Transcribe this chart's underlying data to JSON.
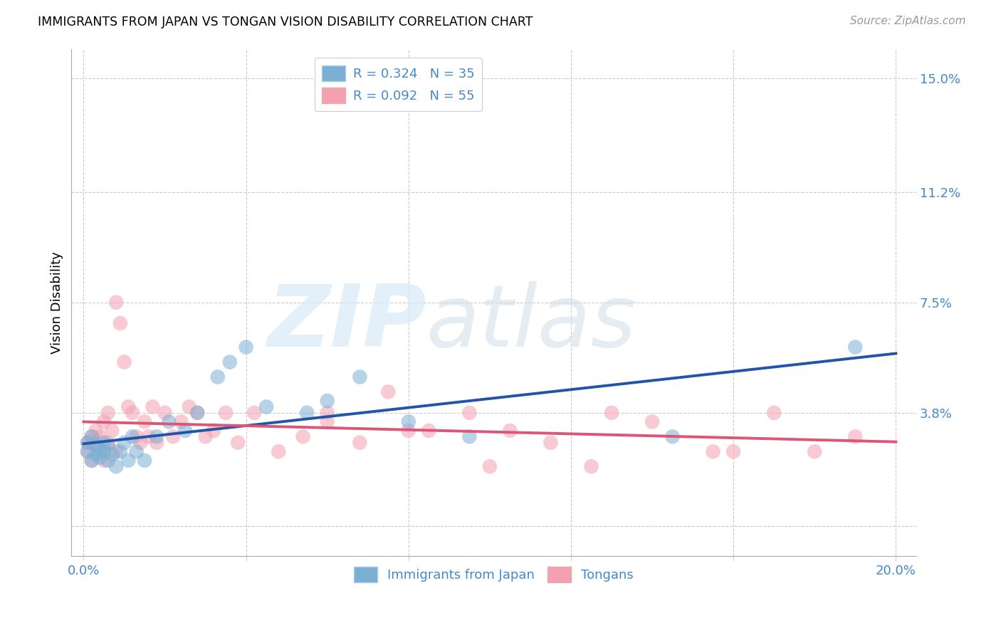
{
  "title": "IMMIGRANTS FROM JAPAN VS TONGAN VISION DISABILITY CORRELATION CHART",
  "source": "Source: ZipAtlas.com",
  "ylabel": "Vision Disability",
  "xlim_min": -0.003,
  "xlim_max": 0.205,
  "ylim_min": -0.01,
  "ylim_max": 0.16,
  "ytick_vals": [
    0.0,
    0.038,
    0.075,
    0.112,
    0.15
  ],
  "ytick_labels": [
    "",
    "3.8%",
    "7.5%",
    "11.2%",
    "15.0%"
  ],
  "xtick_vals": [
    0.0,
    0.04,
    0.08,
    0.12,
    0.16,
    0.2
  ],
  "xtick_labels": [
    "0.0%",
    "",
    "",
    "",
    "",
    "20.0%"
  ],
  "legend_r1": "R = 0.324   N = 35",
  "legend_r2": "R = 0.092   N = 55",
  "color_blue": "#7BAFD4",
  "color_pink": "#F4A0B0",
  "color_blue_line": "#2255AA",
  "color_pink_line": "#DD5577",
  "color_blue_text": "#4488CC",
  "japan_x": [
    0.001,
    0.001,
    0.002,
    0.002,
    0.003,
    0.003,
    0.004,
    0.004,
    0.005,
    0.005,
    0.006,
    0.006,
    0.007,
    0.008,
    0.009,
    0.01,
    0.011,
    0.012,
    0.013,
    0.015,
    0.018,
    0.021,
    0.025,
    0.028,
    0.033,
    0.036,
    0.04,
    0.045,
    0.055,
    0.06,
    0.068,
    0.08,
    0.095,
    0.145,
    0.19
  ],
  "japan_y": [
    0.025,
    0.028,
    0.022,
    0.03,
    0.027,
    0.024,
    0.026,
    0.023,
    0.028,
    0.025,
    0.022,
    0.027,
    0.024,
    0.02,
    0.025,
    0.028,
    0.022,
    0.03,
    0.025,
    0.022,
    0.03,
    0.035,
    0.032,
    0.038,
    0.05,
    0.055,
    0.06,
    0.04,
    0.038,
    0.042,
    0.05,
    0.035,
    0.03,
    0.03,
    0.06
  ],
  "tongan_x": [
    0.001,
    0.001,
    0.002,
    0.002,
    0.003,
    0.003,
    0.004,
    0.004,
    0.005,
    0.005,
    0.006,
    0.006,
    0.007,
    0.008,
    0.008,
    0.009,
    0.01,
    0.011,
    0.012,
    0.013,
    0.014,
    0.015,
    0.016,
    0.017,
    0.018,
    0.02,
    0.022,
    0.024,
    0.026,
    0.028,
    0.03,
    0.032,
    0.035,
    0.038,
    0.042,
    0.048,
    0.054,
    0.06,
    0.068,
    0.075,
    0.085,
    0.095,
    0.105,
    0.115,
    0.125,
    0.14,
    0.155,
    0.17,
    0.18,
    0.19,
    0.06,
    0.08,
    0.1,
    0.13,
    0.16
  ],
  "tongan_y": [
    0.028,
    0.025,
    0.03,
    0.022,
    0.028,
    0.032,
    0.025,
    0.03,
    0.035,
    0.022,
    0.038,
    0.028,
    0.032,
    0.025,
    0.075,
    0.068,
    0.055,
    0.04,
    0.038,
    0.03,
    0.028,
    0.035,
    0.03,
    0.04,
    0.028,
    0.038,
    0.03,
    0.035,
    0.04,
    0.038,
    0.03,
    0.032,
    0.038,
    0.028,
    0.038,
    0.025,
    0.03,
    0.035,
    0.028,
    0.045,
    0.032,
    0.038,
    0.032,
    0.028,
    0.02,
    0.035,
    0.025,
    0.038,
    0.025,
    0.03,
    0.038,
    0.032,
    0.02,
    0.038,
    0.025
  ]
}
